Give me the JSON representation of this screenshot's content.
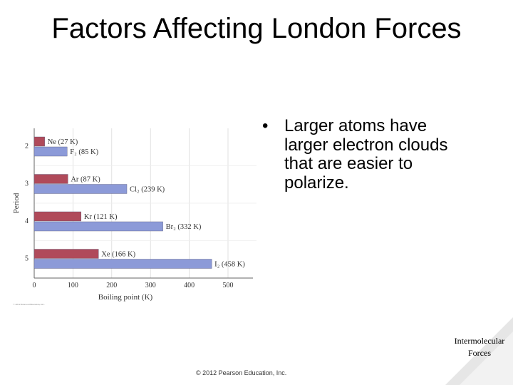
{
  "slide": {
    "title": "Factors Affecting London Forces",
    "bullet_marker": "•",
    "bullet_text": "Larger atoms have larger electron clouds that are easier to polarize.",
    "copyright": "© 2012 Pearson Education, Inc.",
    "nav_tag": "Intermolecular Forces"
  },
  "chart_data": {
    "type": "bar",
    "orientation": "horizontal",
    "xlabel": "Boiling point (K)",
    "ylabel": "Period",
    "xlim": [
      0,
      500
    ],
    "xticks": [
      "0",
      "100",
      "200",
      "300",
      "400",
      "500"
    ],
    "periods": [
      "2",
      "3",
      "4",
      "5"
    ],
    "series": [
      {
        "color": "#b04a5a",
        "values": [
          27,
          87,
          121,
          166
        ],
        "labels": [
          "Ne (27 K)",
          "Ar (87 K)",
          "Kr (121 K)",
          "Xe (166 K)"
        ]
      },
      {
        "color": "#8c9ad8",
        "values": [
          85,
          239,
          332,
          458
        ],
        "labels": [
          "F₂ (85 K)",
          "Cl₂ (239 K)",
          "Br₂ (332 K)",
          "I₂ (458 K)"
        ]
      }
    ],
    "grid": true,
    "credit": "© 2012 Pearson Education, Inc."
  }
}
